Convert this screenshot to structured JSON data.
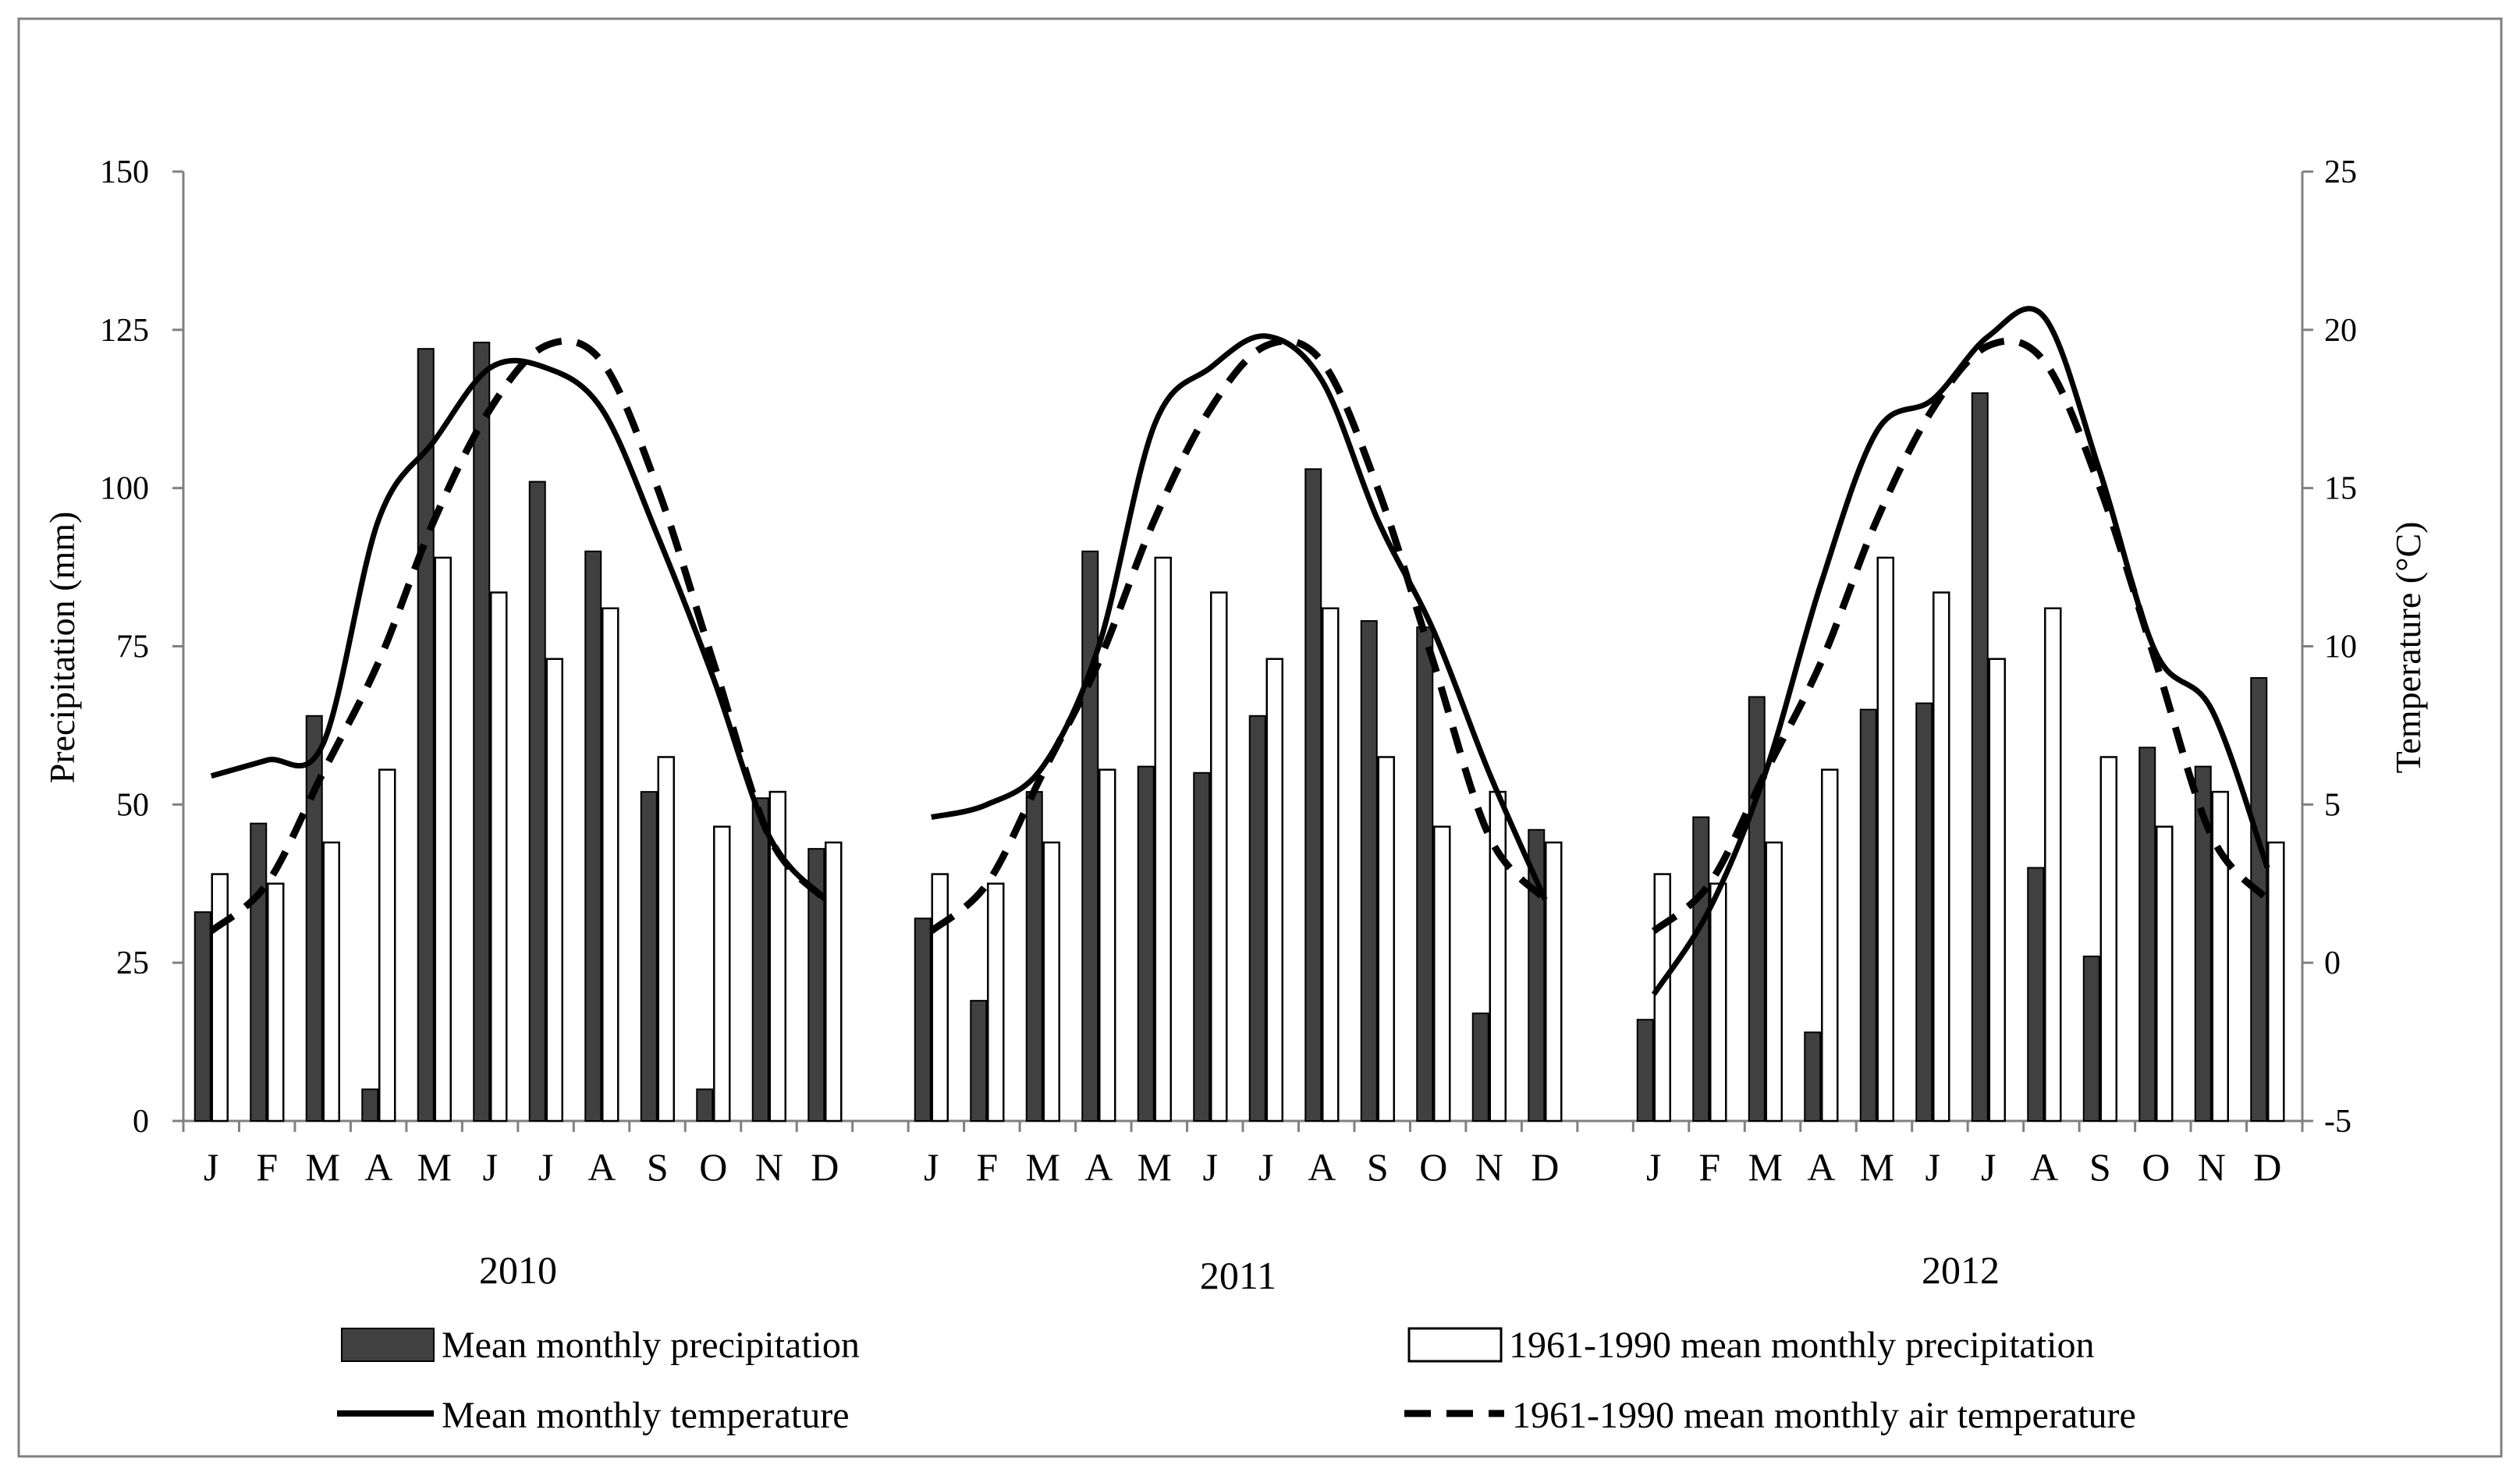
{
  "chart_data": {
    "type": "bar",
    "title": "",
    "ylabel": "Precipitation (mm)",
    "y2label": "Temperature (°C)",
    "ylim": [
      0,
      150
    ],
    "y2lim": [
      -5,
      25
    ],
    "yticks": [
      "0",
      "25",
      "50",
      "75",
      "100",
      "125",
      "150"
    ],
    "y2ticks": [
      "-5",
      "0",
      "5",
      "10",
      "15",
      "20",
      "25"
    ],
    "months": [
      "J",
      "F",
      "M",
      "A",
      "M",
      "J",
      "J",
      "A",
      "S",
      "O",
      "N",
      "D"
    ],
    "grid": false,
    "legend_position": "bottom",
    "colors": {
      "mean_precip": "#404040",
      "normal_precip": "#ffffff",
      "line": "#000000",
      "frame": "#808080"
    },
    "legend": {
      "mean_precip": "Mean monthly precipitation",
      "normal_precip": "1961-1990 mean monthly precipitation",
      "mean_temp": "Mean monthly temperature",
      "normal_temp": "1961-1990 mean monthly air temperature"
    },
    "normal_precipitation": [
      39,
      37.5,
      44,
      55.5,
      89,
      83.5,
      73,
      81,
      57.5,
      46.5,
      52,
      44
    ],
    "normal_temperature": [
      1,
      2.5,
      6,
      9.5,
      14,
      17.5,
      19.5,
      19,
      15,
      9.5,
      4,
      2
    ],
    "years": [
      {
        "label": "2010",
        "precipitation": [
          33,
          47,
          64,
          5,
          122,
          123,
          101,
          90,
          52,
          5,
          51,
          43
        ],
        "temperature": [
          5.9,
          6.4,
          6.9,
          14,
          16.5,
          18.8,
          18.8,
          17.5,
          13.5,
          9,
          4,
          2
        ]
      },
      {
        "label": "2011",
        "precipitation": [
          32,
          19,
          52,
          90,
          56,
          55,
          64,
          103,
          79,
          78,
          17,
          46
        ],
        "temperature": [
          4.6,
          5,
          6.2,
          10,
          17,
          18.8,
          19.8,
          18.4,
          14,
          10.5,
          6,
          2
        ]
      },
      {
        "label": "2012",
        "precipitation": [
          16,
          48,
          67,
          14,
          65,
          66,
          115,
          40,
          26,
          59,
          56,
          70
        ],
        "temperature": [
          -1,
          1.7,
          6,
          12,
          16.8,
          17.8,
          19.8,
          20.4,
          15.5,
          9.8,
          8,
          3
        ]
      }
    ]
  }
}
